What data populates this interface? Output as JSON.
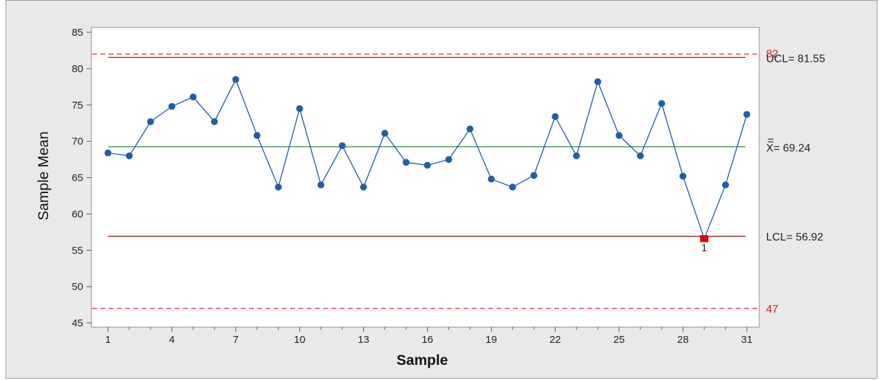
{
  "colors": {
    "frame_background": "#e9e9e9",
    "plot_background": "#ffffff",
    "series": "#1f5fa8",
    "center_line": "#2e8b3a",
    "control_limit": "#8b1a1a",
    "spec_limit": "#cc2222",
    "out_of_control_point": "#e00000"
  },
  "chart_data": {
    "type": "line",
    "chart_kind": "xbar_control_chart",
    "xlabel": "Sample",
    "ylabel": "Sample Mean",
    "xlim": [
      1,
      31
    ],
    "ylim": [
      45,
      85
    ],
    "x_ticks": [
      1,
      4,
      7,
      10,
      13,
      16,
      19,
      22,
      25,
      28,
      31
    ],
    "y_ticks": [
      45,
      50,
      55,
      60,
      65,
      70,
      75,
      80,
      85
    ],
    "grid": false,
    "series": [
      {
        "x": [
          1,
          2,
          3,
          4,
          5,
          6,
          7,
          8,
          9,
          10,
          11,
          12,
          13,
          14,
          15,
          16,
          17,
          18,
          19,
          20,
          21,
          22,
          23,
          24,
          25,
          26,
          27,
          28,
          29,
          30,
          31
        ],
        "values": [
          68.4,
          68.0,
          72.7,
          74.8,
          76.1,
          72.7,
          78.5,
          70.8,
          63.7,
          74.5,
          64.0,
          69.4,
          63.7,
          71.1,
          67.1,
          66.7,
          67.5,
          71.7,
          64.8,
          63.7,
          65.3,
          73.4,
          68.0,
          78.2,
          70.8,
          68.0,
          75.2,
          65.2,
          56.6,
          64.0,
          73.7
        ]
      }
    ],
    "reference_lines": {
      "ucl": {
        "value": 81.55,
        "label": "UCL= 81.55"
      },
      "center": {
        "value": 69.24,
        "label_symbol": "=",
        "label": "X= 69.24"
      },
      "lcl": {
        "value": 56.92,
        "label": "LCL= 56.92"
      },
      "upper_spec": {
        "value": 82,
        "label": "82"
      },
      "lower_spec": {
        "value": 47,
        "label": "47"
      }
    },
    "flagged_points": [
      {
        "x": 29,
        "label": "1"
      }
    ]
  }
}
